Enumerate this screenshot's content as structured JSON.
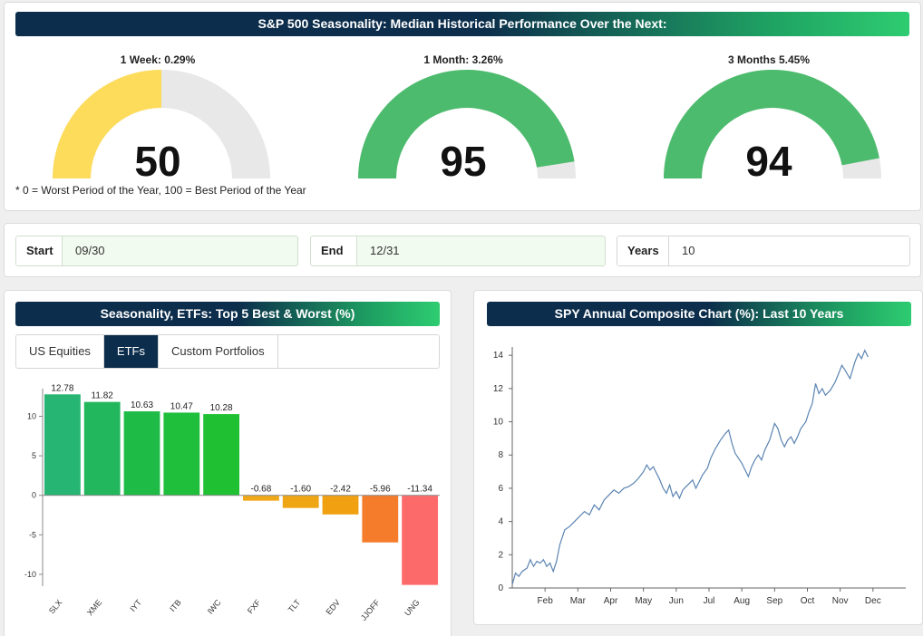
{
  "seasonality_header": "S&P 500 Seasonality: Median Historical Performance Over the Next:",
  "gauges": [
    {
      "label": "1 Week: 0.29%",
      "value": 50,
      "percent": 50,
      "color": "#fddc5c"
    },
    {
      "label": "1 Month: 3.26%",
      "value": 95,
      "percent": 95,
      "color": "#4dbb6d"
    },
    {
      "label": "3 Months 5.45%",
      "value": 94,
      "percent": 94,
      "color": "#4dbb6d"
    }
  ],
  "footnote": "* 0 = Worst Period of the Year, 100 = Best Period of the Year",
  "inputs": {
    "start": {
      "label": "Start",
      "value": "09/30"
    },
    "end": {
      "label": "End",
      "value": "12/31"
    },
    "years": {
      "label": "Years",
      "value": "10"
    }
  },
  "etf_panel": {
    "header": "Seasonality, ETFs: Top 5 Best & Worst (%)",
    "tabs": [
      "US Equities",
      "ETFs",
      "Custom Portfolios"
    ],
    "active_tab": "ETFs"
  },
  "spy_panel": {
    "header": "SPY Annual Composite Chart (%): Last 10 Years"
  },
  "chart_data": [
    {
      "type": "bar",
      "title": "Seasonality, ETFs: Top 5 Best & Worst (%)",
      "categories": [
        "SLX",
        "XME",
        "IYT",
        "ITB",
        "IWC",
        "FXF",
        "TLT",
        "EDV",
        "JJOFF",
        "UNG"
      ],
      "values": [
        12.78,
        11.82,
        10.63,
        10.47,
        10.28,
        -0.68,
        -1.6,
        -2.42,
        -5.96,
        -11.34
      ],
      "value_labels": [
        "12.78",
        "11.82",
        "10.63",
        "10.47",
        "10.28",
        "-0.68",
        "-1.60",
        "-2.42",
        "-5.96",
        "-11.34"
      ],
      "colors": [
        "#27b574",
        "#22b65d",
        "#1fbb47",
        "#1fbf3b",
        "#1fc133",
        "#f0a818",
        "#f0a515",
        "#f0a010",
        "#f57c2a",
        "#fd6a6a"
      ],
      "yticks": [
        10,
        5,
        0,
        -5,
        -10
      ],
      "ylim": [
        -11.5,
        13.5
      ]
    },
    {
      "type": "line",
      "title": "SPY Annual Composite Chart (%): Last 10 Years",
      "x_ticks": [
        "Feb",
        "Mar",
        "Apr",
        "May",
        "Jun",
        "Jul",
        "Aug",
        "Sep",
        "Oct",
        "Nov",
        "Dec"
      ],
      "yticks": [
        0,
        2,
        4,
        6,
        8,
        10,
        12,
        14
      ],
      "ylim": [
        0,
        14.5
      ],
      "x_range": [
        0,
        12
      ],
      "series": [
        {
          "name": "SPY",
          "color": "#5b84b1",
          "points": [
            [
              0.0,
              0.2
            ],
            [
              0.1,
              0.9
            ],
            [
              0.2,
              0.7
            ],
            [
              0.3,
              1.0
            ],
            [
              0.45,
              1.2
            ],
            [
              0.55,
              1.7
            ],
            [
              0.65,
              1.3
            ],
            [
              0.75,
              1.6
            ],
            [
              0.85,
              1.5
            ],
            [
              0.95,
              1.7
            ],
            [
              1.05,
              1.3
            ],
            [
              1.15,
              1.5
            ],
            [
              1.25,
              1.0
            ],
            [
              1.35,
              1.6
            ],
            [
              1.45,
              2.6
            ],
            [
              1.6,
              3.5
            ],
            [
              1.75,
              3.7
            ],
            [
              1.9,
              4.0
            ],
            [
              2.05,
              4.3
            ],
            [
              2.2,
              4.6
            ],
            [
              2.35,
              4.4
            ],
            [
              2.5,
              5.0
            ],
            [
              2.65,
              4.7
            ],
            [
              2.8,
              5.3
            ],
            [
              2.95,
              5.6
            ],
            [
              3.1,
              5.9
            ],
            [
              3.25,
              5.7
            ],
            [
              3.4,
              6.0
            ],
            [
              3.55,
              6.1
            ],
            [
              3.7,
              6.3
            ],
            [
              3.85,
              6.6
            ],
            [
              4.0,
              7.0
            ],
            [
              4.1,
              7.4
            ],
            [
              4.2,
              7.1
            ],
            [
              4.3,
              7.3
            ],
            [
              4.4,
              6.9
            ],
            [
              4.5,
              6.5
            ],
            [
              4.6,
              6.0
            ],
            [
              4.7,
              5.7
            ],
            [
              4.8,
              6.2
            ],
            [
              4.9,
              5.5
            ],
            [
              5.0,
              5.8
            ],
            [
              5.1,
              5.4
            ],
            [
              5.2,
              5.9
            ],
            [
              5.35,
              6.2
            ],
            [
              5.5,
              6.5
            ],
            [
              5.6,
              6.0
            ],
            [
              5.7,
              6.4
            ],
            [
              5.8,
              6.8
            ],
            [
              5.95,
              7.2
            ],
            [
              6.05,
              7.8
            ],
            [
              6.2,
              8.4
            ],
            [
              6.35,
              8.9
            ],
            [
              6.5,
              9.3
            ],
            [
              6.6,
              9.5
            ],
            [
              6.7,
              8.7
            ],
            [
              6.8,
              8.1
            ],
            [
              6.9,
              7.8
            ],
            [
              7.0,
              7.5
            ],
            [
              7.1,
              7.1
            ],
            [
              7.2,
              6.7
            ],
            [
              7.3,
              7.3
            ],
            [
              7.4,
              7.7
            ],
            [
              7.5,
              8.0
            ],
            [
              7.6,
              7.7
            ],
            [
              7.7,
              8.3
            ],
            [
              7.85,
              8.9
            ],
            [
              8.0,
              9.9
            ],
            [
              8.1,
              9.6
            ],
            [
              8.2,
              8.9
            ],
            [
              8.3,
              8.5
            ],
            [
              8.4,
              8.9
            ],
            [
              8.5,
              9.1
            ],
            [
              8.6,
              8.7
            ],
            [
              8.7,
              9.1
            ],
            [
              8.8,
              9.6
            ],
            [
              8.95,
              10.0
            ],
            [
              9.05,
              10.6
            ],
            [
              9.15,
              11.1
            ],
            [
              9.25,
              12.3
            ],
            [
              9.35,
              11.7
            ],
            [
              9.45,
              12.0
            ],
            [
              9.55,
              11.6
            ],
            [
              9.7,
              11.9
            ],
            [
              9.85,
              12.4
            ],
            [
              9.95,
              12.9
            ],
            [
              10.05,
              13.4
            ],
            [
              10.15,
              13.1
            ],
            [
              10.3,
              12.6
            ],
            [
              10.45,
              13.6
            ],
            [
              10.55,
              14.1
            ],
            [
              10.65,
              13.8
            ],
            [
              10.75,
              14.3
            ],
            [
              10.85,
              13.9
            ]
          ]
        }
      ]
    }
  ]
}
